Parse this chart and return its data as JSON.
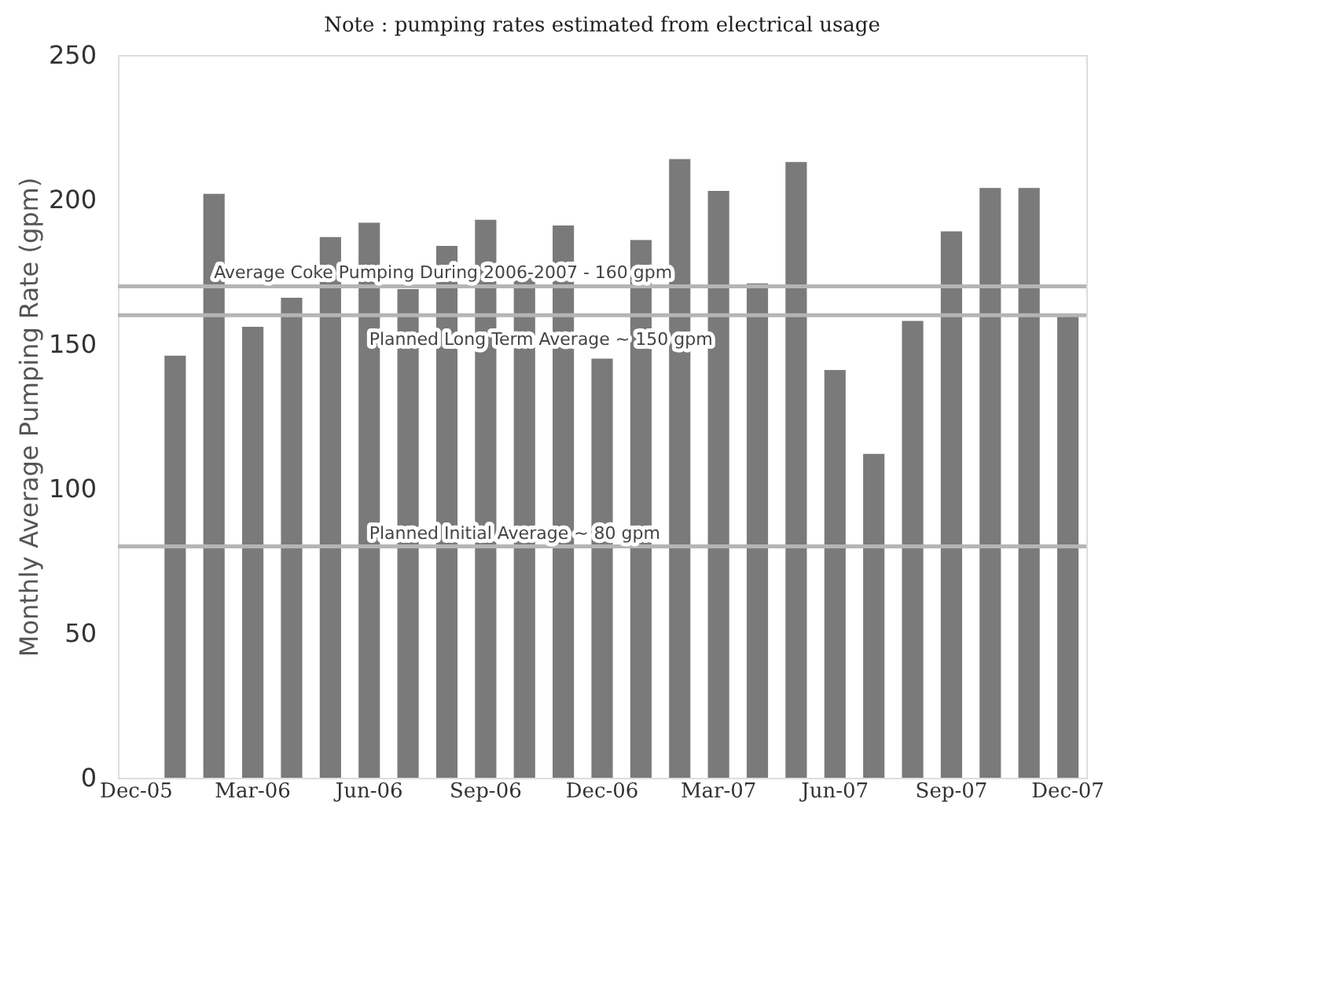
{
  "chart_data": {
    "type": "bar",
    "title": "Note : pumping rates estimated from electrical usage",
    "ylabel": "Monthly Average Pumping Rate (gpm)",
    "categories": [
      "Dec-05",
      null,
      null,
      "Mar-06",
      null,
      null,
      "Jun-06",
      null,
      null,
      "Sep-06",
      null,
      null,
      "Dec-06",
      null,
      null,
      "Mar-07",
      null,
      null,
      "Jun-07",
      null,
      null,
      "Sep-07",
      null,
      null,
      "Dec-07"
    ],
    "values": [
      null,
      146,
      202,
      156,
      166,
      187,
      192,
      169,
      184,
      193,
      174,
      191,
      145,
      186,
      214,
      203,
      171,
      213,
      141,
      112,
      158,
      189,
      204,
      204,
      160
    ],
    "color": "#7a7a7a",
    "ylim": [
      0,
      250
    ],
    "yticks": [
      0,
      50,
      100,
      150,
      200,
      250
    ],
    "ref_lines": [
      {
        "axis": "y",
        "value": 170,
        "label": "Average Coke Pumping During 2006-2007 - 160 gpm",
        "color": "#b5b5b5"
      },
      {
        "axis": "y",
        "value": 160,
        "label": "Planned Long Term Average ~ 150 gpm",
        "color": "#b5b5b5"
      },
      {
        "axis": "y",
        "value": 80,
        "label": "Planned Initial Average ~ 80 gpm",
        "color": "#b5b5b5"
      }
    ],
    "grid": false
  }
}
